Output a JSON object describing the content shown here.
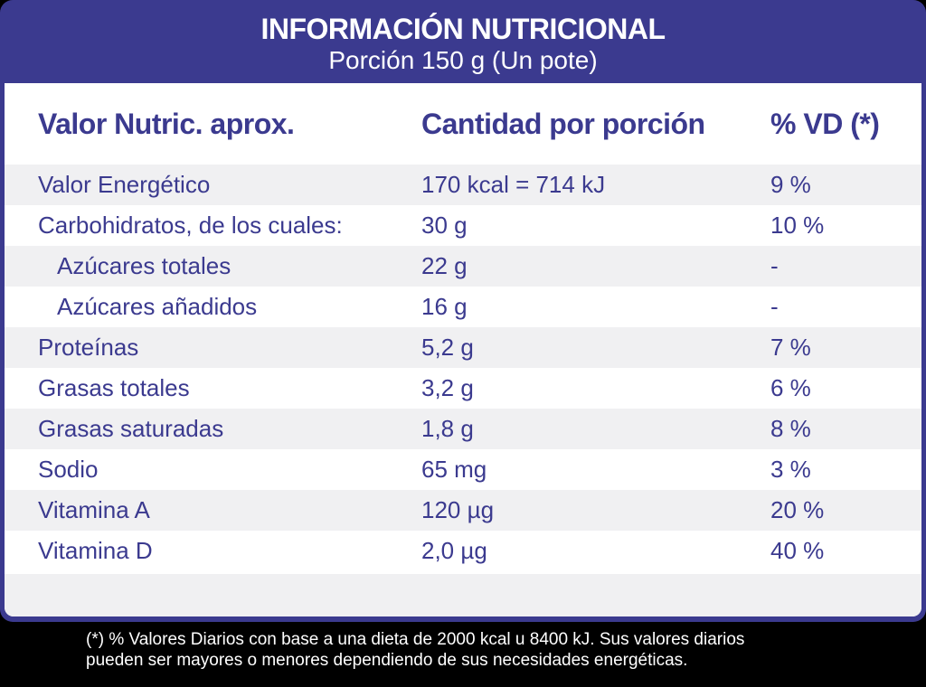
{
  "header": {
    "title": "INFORMACIÓN NUTRICIONAL",
    "subtitle": "Porción 150 g (Un pote)"
  },
  "table": {
    "columns": [
      "Valor Nutric. aprox.",
      "Cantidad por porción",
      "% VD (*)"
    ],
    "rows": [
      {
        "name": "Valor Energético",
        "amount": "170 kcal = 714 kJ",
        "dv": "9 %"
      },
      {
        "name": "Carbohidratos, de los cuales:",
        "amount": "30 g",
        "dv": "10 %"
      },
      {
        "name": "Azúcares totales",
        "amount": "22 g",
        "dv": "-"
      },
      {
        "name": "Azúcares añadidos",
        "amount": "16 g",
        "dv": "-"
      },
      {
        "name": "Proteínas",
        "amount": "5,2 g",
        "dv": "7 %"
      },
      {
        "name": "Grasas totales",
        "amount": "3,2 g",
        "dv": "6 %"
      },
      {
        "name": "Grasas saturadas",
        "amount": "1,8 g",
        "dv": "8 %"
      },
      {
        "name": "Sodio",
        "amount": "65 mg",
        "dv": "3 %"
      },
      {
        "name": "Vitamina A",
        "amount": "120 µg",
        "dv": "20 %"
      },
      {
        "name": "Vitamina D",
        "amount": "2,0 µg",
        "dv": "40 %"
      }
    ]
  },
  "footer": {
    "line1": "(*) % Valores Diarios con base a una dieta de 2000 kcal u 8400 kJ. Sus valores diarios",
    "line2": "pueden ser mayores o menores dependiendo de sus necesidades energéticas."
  },
  "colors": {
    "brand_blue": "#3b3a8f",
    "row_shade": "#f0f0f2",
    "background": "#000000"
  }
}
